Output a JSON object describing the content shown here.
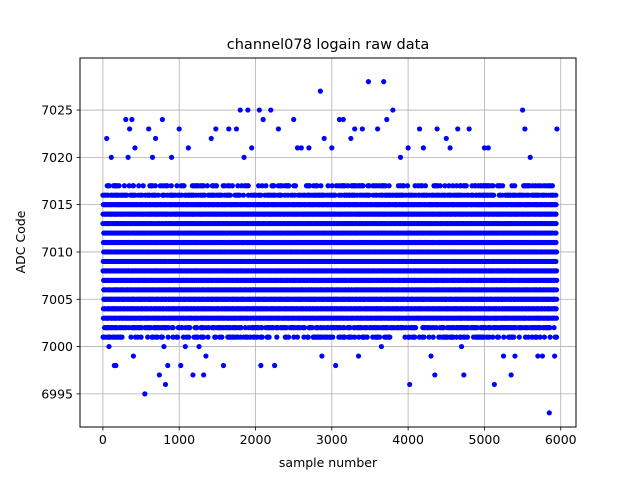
{
  "chart_data": {
    "type": "scatter",
    "title": "channel078 logain raw data",
    "xlabel": "sample number",
    "ylabel": "ADC Code",
    "xlim": [
      -300,
      6200
    ],
    "ylim": [
      6991.5,
      7030.5
    ],
    "xticks": [
      0,
      1000,
      2000,
      3000,
      4000,
      5000,
      6000
    ],
    "yticks": [
      6995,
      7000,
      7005,
      7010,
      7015,
      7020,
      7025
    ],
    "grid": true,
    "marker": "o",
    "color": "#0000ff",
    "n_samples": 5950,
    "series": [
      {
        "bulk_band": {
          "x_range": [
            0,
            5950
          ],
          "y_range": [
            7001,
            7017
          ],
          "step": 1
        },
        "outliers": [
          {
            "x": 20,
            "y": 7001
          },
          {
            "x": 50,
            "y": 7022
          },
          {
            "x": 80,
            "y": 7000
          },
          {
            "x": 110,
            "y": 7020
          },
          {
            "x": 150,
            "y": 6998
          },
          {
            "x": 170,
            "y": 6998
          },
          {
            "x": 300,
            "y": 7024
          },
          {
            "x": 330,
            "y": 7020
          },
          {
            "x": 350,
            "y": 7023
          },
          {
            "x": 380,
            "y": 7024
          },
          {
            "x": 400,
            "y": 6999
          },
          {
            "x": 420,
            "y": 7021
          },
          {
            "x": 550,
            "y": 6995
          },
          {
            "x": 600,
            "y": 7023
          },
          {
            "x": 650,
            "y": 7020
          },
          {
            "x": 690,
            "y": 7022
          },
          {
            "x": 740,
            "y": 6997
          },
          {
            "x": 780,
            "y": 7024
          },
          {
            "x": 800,
            "y": 7000
          },
          {
            "x": 820,
            "y": 6996
          },
          {
            "x": 850,
            "y": 6998
          },
          {
            "x": 900,
            "y": 7020
          },
          {
            "x": 1000,
            "y": 7023
          },
          {
            "x": 1020,
            "y": 6998
          },
          {
            "x": 1080,
            "y": 7000
          },
          {
            "x": 1120,
            "y": 7021
          },
          {
            "x": 1180,
            "y": 6997
          },
          {
            "x": 1260,
            "y": 7000
          },
          {
            "x": 1320,
            "y": 6997
          },
          {
            "x": 1350,
            "y": 6999
          },
          {
            "x": 1420,
            "y": 7022
          },
          {
            "x": 1480,
            "y": 7023
          },
          {
            "x": 1580,
            "y": 6998
          },
          {
            "x": 1650,
            "y": 7023
          },
          {
            "x": 1750,
            "y": 7023
          },
          {
            "x": 1800,
            "y": 7025
          },
          {
            "x": 1850,
            "y": 7020
          },
          {
            "x": 1900,
            "y": 7025
          },
          {
            "x": 1950,
            "y": 7021
          },
          {
            "x": 2050,
            "y": 7025
          },
          {
            "x": 2070,
            "y": 6998
          },
          {
            "x": 2100,
            "y": 7024
          },
          {
            "x": 2200,
            "y": 7025
          },
          {
            "x": 2250,
            "y": 6998
          },
          {
            "x": 2300,
            "y": 7023
          },
          {
            "x": 2500,
            "y": 7024
          },
          {
            "x": 2550,
            "y": 7021
          },
          {
            "x": 2600,
            "y": 7021
          },
          {
            "x": 2700,
            "y": 7021
          },
          {
            "x": 2850,
            "y": 7027
          },
          {
            "x": 2870,
            "y": 6999
          },
          {
            "x": 2900,
            "y": 7022
          },
          {
            "x": 3000,
            "y": 7021
          },
          {
            "x": 3050,
            "y": 6998
          },
          {
            "x": 3100,
            "y": 7024
          },
          {
            "x": 3150,
            "y": 7024
          },
          {
            "x": 3250,
            "y": 7022
          },
          {
            "x": 3300,
            "y": 7023
          },
          {
            "x": 3350,
            "y": 6999
          },
          {
            "x": 3400,
            "y": 7023
          },
          {
            "x": 3480,
            "y": 7028
          },
          {
            "x": 3600,
            "y": 7023
          },
          {
            "x": 3650,
            "y": 7000
          },
          {
            "x": 3680,
            "y": 7028
          },
          {
            "x": 3720,
            "y": 7024
          },
          {
            "x": 3800,
            "y": 7025
          },
          {
            "x": 3900,
            "y": 7020
          },
          {
            "x": 4000,
            "y": 7021
          },
          {
            "x": 4020,
            "y": 6996
          },
          {
            "x": 4150,
            "y": 7023
          },
          {
            "x": 4200,
            "y": 7021
          },
          {
            "x": 4300,
            "y": 6999
          },
          {
            "x": 4350,
            "y": 6997
          },
          {
            "x": 4380,
            "y": 7023
          },
          {
            "x": 4500,
            "y": 7022
          },
          {
            "x": 4550,
            "y": 7021
          },
          {
            "x": 4650,
            "y": 7023
          },
          {
            "x": 4700,
            "y": 7000
          },
          {
            "x": 4730,
            "y": 6997
          },
          {
            "x": 4800,
            "y": 7023
          },
          {
            "x": 5000,
            "y": 7021
          },
          {
            "x": 5050,
            "y": 7021
          },
          {
            "x": 5130,
            "y": 6996
          },
          {
            "x": 5250,
            "y": 6999
          },
          {
            "x": 5350,
            "y": 6997
          },
          {
            "x": 5400,
            "y": 6999
          },
          {
            "x": 5500,
            "y": 7025
          },
          {
            "x": 5530,
            "y": 7023
          },
          {
            "x": 5600,
            "y": 7020
          },
          {
            "x": 5700,
            "y": 6999
          },
          {
            "x": 5760,
            "y": 6999
          },
          {
            "x": 5850,
            "y": 6993
          },
          {
            "x": 5920,
            "y": 6999
          },
          {
            "x": 5950,
            "y": 7023
          }
        ]
      }
    ]
  }
}
